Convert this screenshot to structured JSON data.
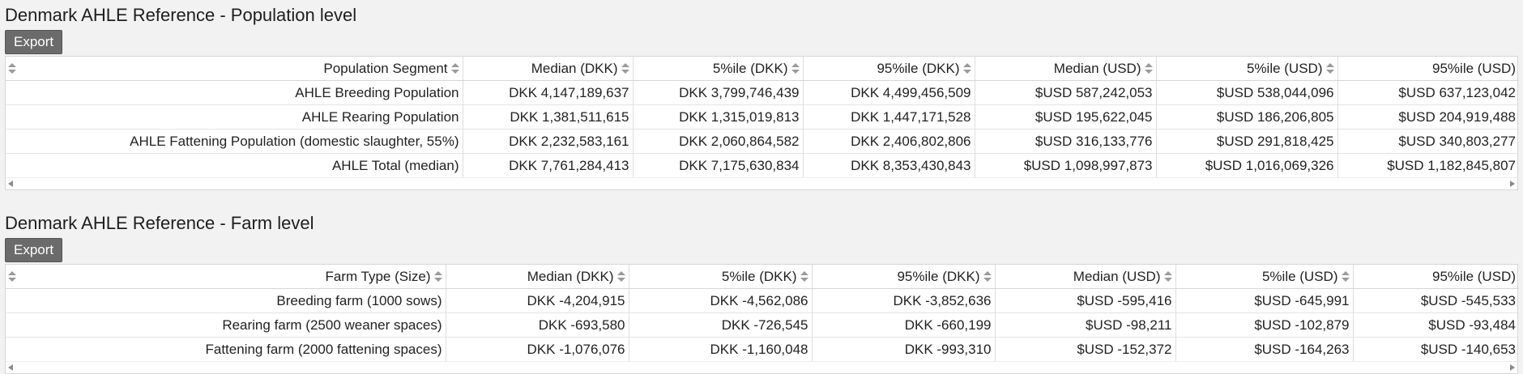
{
  "population": {
    "title": "Denmark AHLE Reference - Population level",
    "export_label": "Export",
    "headers": [
      "Population Segment",
      "Median (DKK)",
      "5%ile (DKK)",
      "95%ile (DKK)",
      "Median (USD)",
      "5%ile (USD)",
      "95%ile (USD)"
    ],
    "rows": [
      [
        "AHLE Breeding Population",
        "DKK 4,147,189,637",
        "DKK 3,799,746,439",
        "DKK 4,499,456,509",
        "$USD 587,242,053",
        "$USD 538,044,096",
        "$USD 637,123,042"
      ],
      [
        "AHLE Rearing Population",
        "DKK 1,381,511,615",
        "DKK 1,315,019,813",
        "DKK 1,447,171,528",
        "$USD 195,622,045",
        "$USD 186,206,805",
        "$USD 204,919,488"
      ],
      [
        "AHLE Fattening Population (domestic slaughter, 55%)",
        "DKK 2,232,583,161",
        "DKK 2,060,864,582",
        "DKK 2,406,802,806",
        "$USD 316,133,776",
        "$USD 291,818,425",
        "$USD 340,803,277"
      ],
      [
        "AHLE Total (median)",
        "DKK 7,761,284,413",
        "DKK 7,175,630,834",
        "DKK 8,353,430,843",
        "$USD 1,098,997,873",
        "$USD 1,016,069,326",
        "$USD 1,182,845,807"
      ]
    ]
  },
  "farm": {
    "title": "Denmark AHLE Reference - Farm level",
    "export_label": "Export",
    "headers": [
      "Farm Type (Size)",
      "Median (DKK)",
      "5%ile (DKK)",
      "95%ile (DKK)",
      "Median (USD)",
      "5%ile (USD)",
      "95%ile (USD)"
    ],
    "rows": [
      [
        "Breeding farm (1000 sows)",
        "DKK -4,204,915",
        "DKK -4,562,086",
        "DKK -3,852,636",
        "$USD -595,416",
        "$USD -645,991",
        "$USD -545,533"
      ],
      [
        "Rearing farm (2500 weaner spaces)",
        "DKK -693,580",
        "DKK -726,545",
        "DKK -660,199",
        "$USD -98,211",
        "$USD -102,879",
        "$USD -93,484"
      ],
      [
        "Fattening farm (2000 fattening spaces)",
        "DKK -1,076,076",
        "DKK -1,160,048",
        "DKK -993,310",
        "$USD -152,372",
        "$USD -164,263",
        "$USD -140,653"
      ]
    ]
  }
}
